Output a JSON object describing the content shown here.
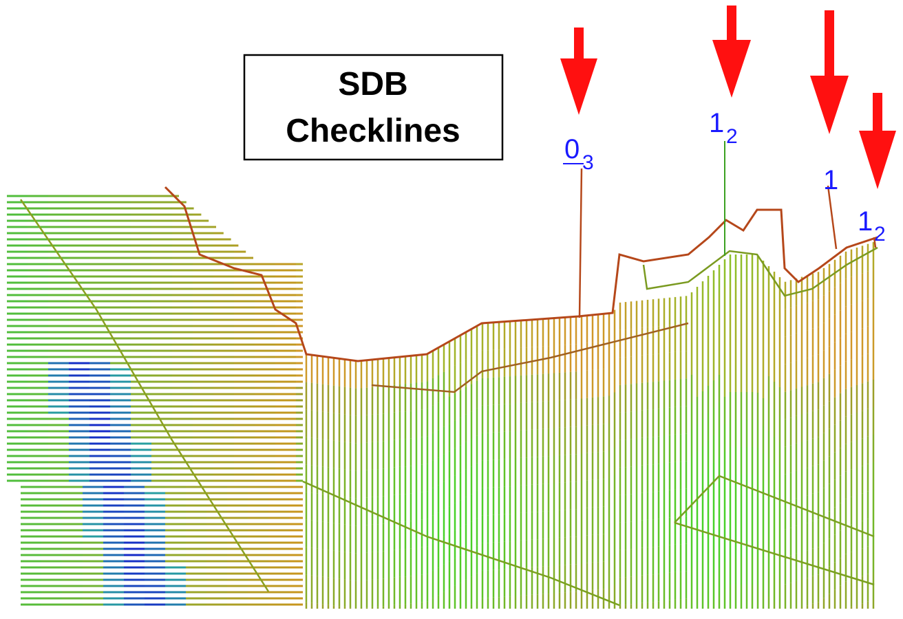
{
  "title": {
    "lines": [
      "SDB",
      "Checklines"
    ]
  },
  "labels": [
    {
      "main": "0",
      "sub": "3"
    },
    {
      "main": "1",
      "sub": "2"
    },
    {
      "main": "1"
    },
    {
      "main": "1",
      "sub": "2"
    }
  ]
}
